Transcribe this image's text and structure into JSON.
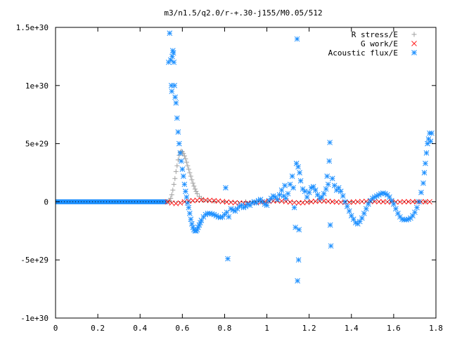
{
  "chart_data": {
    "type": "scatter",
    "title": "m3/n1.5/q2.0/r-+.30-j155/M0.05/512",
    "xlabel": "",
    "ylabel": "",
    "xlim": [
      0,
      1.8
    ],
    "ylim": [
      -1e+30,
      1.5e+30
    ],
    "x_ticks": [
      {
        "value": 0,
        "label": "0"
      },
      {
        "value": 0.2,
        "label": "0.2"
      },
      {
        "value": 0.4,
        "label": "0.4"
      },
      {
        "value": 0.6,
        "label": "0.6"
      },
      {
        "value": 0.8,
        "label": "0.8"
      },
      {
        "value": 1.0,
        "label": "1"
      },
      {
        "value": 1.2,
        "label": "1.2"
      },
      {
        "value": 1.4,
        "label": "1.4"
      },
      {
        "value": 1.6,
        "label": "1.6"
      },
      {
        "value": 1.8,
        "label": "1.8"
      }
    ],
    "y_ticks": [
      {
        "value": 1.5e+30,
        "label": "1.5e+30"
      },
      {
        "value": 1e+30,
        "label": "1e+30"
      },
      {
        "value": 5e+29,
        "label": "5e+29"
      },
      {
        "value": 0,
        "label": "0"
      },
      {
        "value": -5e+29,
        "label": "-5e+29"
      },
      {
        "value": -1e+30,
        "label": "-1e+30"
      }
    ],
    "grid": false,
    "legend_position": "top-right",
    "series": [
      {
        "name": "R stress/E",
        "marker": "plus",
        "color": "#a0a0a0",
        "points": [
          [
            0.53,
            0
          ],
          [
            0.535,
            2e+27
          ],
          [
            0.54,
            1e+28
          ],
          [
            0.545,
            3e+28
          ],
          [
            0.55,
            6e+28
          ],
          [
            0.555,
            1e+29
          ],
          [
            0.56,
            1.5e+29
          ],
          [
            0.565,
            2e+29
          ],
          [
            0.57,
            2.6e+29
          ],
          [
            0.575,
            3.1e+29
          ],
          [
            0.58,
            3.6e+29
          ],
          [
            0.585,
            4e+29
          ],
          [
            0.59,
            4.25e+29
          ],
          [
            0.595,
            4.35e+29
          ],
          [
            0.6,
            4.3e+29
          ],
          [
            0.605,
            4.15e+29
          ],
          [
            0.61,
            3.95e+29
          ],
          [
            0.615,
            3.7e+29
          ],
          [
            0.62,
            3.4e+29
          ],
          [
            0.625,
            3.1e+29
          ],
          [
            0.63,
            2.8e+29
          ],
          [
            0.635,
            2.5e+29
          ],
          [
            0.64,
            2.2e+29
          ],
          [
            0.645,
            1.9e+29
          ],
          [
            0.65,
            1.6e+29
          ],
          [
            0.655,
            1.35e+29
          ],
          [
            0.66,
            1.1e+29
          ],
          [
            0.665,
            9e+28
          ],
          [
            0.67,
            7e+28
          ],
          [
            0.68,
            4.5e+28
          ],
          [
            0.69,
            3e+28
          ],
          [
            0.7,
            2e+28
          ],
          [
            0.72,
            1e+28
          ],
          [
            0.75,
            5e+27
          ],
          [
            0.8,
            2e+27
          ],
          [
            0.9,
            0
          ],
          [
            1.0,
            0
          ],
          [
            1.2,
            0
          ],
          [
            1.4,
            0
          ],
          [
            1.6,
            0
          ],
          [
            1.7,
            0
          ],
          [
            1.75,
            0
          ]
        ]
      },
      {
        "name": "G work/E",
        "marker": "cross",
        "color": "#ff2020",
        "points": [
          [
            0.53,
            -1e+27
          ],
          [
            0.55,
            -1e+28
          ],
          [
            0.57,
            -1.5e+28
          ],
          [
            0.59,
            -1e+28
          ],
          [
            0.61,
            0
          ],
          [
            0.63,
            6e+27
          ],
          [
            0.65,
            1e+28
          ],
          [
            0.67,
            1.3e+28
          ],
          [
            0.69,
            1.5e+28
          ],
          [
            0.71,
            1.4e+28
          ],
          [
            0.73,
            1.2e+28
          ],
          [
            0.75,
            9e+27
          ],
          [
            0.77,
            6e+27
          ],
          [
            0.79,
            2e+27
          ],
          [
            0.81,
            -2e+27
          ],
          [
            0.83,
            -5e+27
          ],
          [
            0.85,
            -8e+27
          ],
          [
            0.87,
            -1e+28
          ],
          [
            0.89,
            -1.2e+28
          ],
          [
            0.91,
            -1.1e+28
          ],
          [
            0.93,
            -9e+27
          ],
          [
            0.95,
            -6e+27
          ],
          [
            0.97,
            -3e+27
          ],
          [
            0.99,
            0
          ],
          [
            1.01,
            4e+27
          ],
          [
            1.03,
            7e+27
          ],
          [
            1.05,
            8e+27
          ],
          [
            1.07,
            6e+27
          ],
          [
            1.09,
            2e+27
          ],
          [
            1.11,
            -3e+27
          ],
          [
            1.13,
            -7e+27
          ],
          [
            1.15,
            -9e+27
          ],
          [
            1.17,
            -8e+27
          ],
          [
            1.19,
            -4e+27
          ],
          [
            1.21,
            0
          ],
          [
            1.23,
            4e+27
          ],
          [
            1.25,
            6e+27
          ],
          [
            1.27,
            6e+27
          ],
          [
            1.29,
            4e+27
          ],
          [
            1.31,
            1e+27
          ],
          [
            1.33,
            -2e+27
          ],
          [
            1.35,
            -4e+27
          ],
          [
            1.37,
            -5e+27
          ],
          [
            1.39,
            -4e+27
          ],
          [
            1.41,
            -2e+27
          ],
          [
            1.43,
            0
          ],
          [
            1.45,
            2e+27
          ],
          [
            1.47,
            3e+27
          ],
          [
            1.49,
            3e+27
          ],
          [
            1.51,
            2e+27
          ],
          [
            1.53,
            1e+27
          ],
          [
            1.55,
            0
          ],
          [
            1.57,
            -1e+27
          ],
          [
            1.59,
            -2e+27
          ],
          [
            1.61,
            -2e+27
          ],
          [
            1.63,
            -1e+27
          ],
          [
            1.65,
            0
          ],
          [
            1.67,
            1e+27
          ],
          [
            1.69,
            1e+27
          ],
          [
            1.71,
            0
          ],
          [
            1.73,
            0
          ],
          [
            1.75,
            0
          ],
          [
            1.77,
            0
          ]
        ]
      },
      {
        "name": "Acoustic flux/E",
        "marker": "star",
        "color": "#1e90ff",
        "points": [
          [
            0.535,
            1.2e+30
          ],
          [
            0.54,
            1.45e+30
          ],
          [
            0.545,
            1.22e+30
          ],
          [
            0.548,
            1e+30
          ],
          [
            0.55,
            9.5e+29
          ],
          [
            0.552,
            1.25e+30
          ],
          [
            0.555,
            1.3e+30
          ],
          [
            0.558,
            1.28e+30
          ],
          [
            0.56,
            1.2e+30
          ],
          [
            0.563,
            1e+30
          ],
          [
            0.566,
            9e+29
          ],
          [
            0.57,
            8.5e+29
          ],
          [
            0.575,
            7.2e+29
          ],
          [
            0.58,
            6e+29
          ],
          [
            0.585,
            5e+29
          ],
          [
            0.59,
            4.2e+29
          ],
          [
            0.595,
            3.5e+29
          ],
          [
            0.6,
            2.8e+29
          ],
          [
            0.605,
            2.2e+29
          ],
          [
            0.61,
            1.5e+29
          ],
          [
            0.615,
            9e+28
          ],
          [
            0.62,
            4e+28
          ],
          [
            0.625,
            -1e+28
          ],
          [
            0.63,
            -5e+28
          ],
          [
            0.635,
            -1e+29
          ],
          [
            0.64,
            -1.5e+29
          ],
          [
            0.645,
            -1.9e+29
          ],
          [
            0.65,
            -2.2e+29
          ],
          [
            0.655,
            -2.4e+29
          ],
          [
            0.66,
            -2.5e+29
          ],
          [
            0.665,
            -2.5e+29
          ],
          [
            0.67,
            -2.4e+29
          ],
          [
            0.675,
            -2.2e+29
          ],
          [
            0.68,
            -2e+29
          ],
          [
            0.685,
            -1.8e+29
          ],
          [
            0.69,
            -1.6e+29
          ],
          [
            0.7,
            -1.3e+29
          ],
          [
            0.71,
            -1.1e+29
          ],
          [
            0.72,
            -1e+29
          ],
          [
            0.73,
            -1e+29
          ],
          [
            0.74,
            -1.05e+29
          ],
          [
            0.75,
            -1.1e+29
          ],
          [
            0.76,
            -1.2e+29
          ],
          [
            0.77,
            -1.3e+29
          ],
          [
            0.78,
            -1.35e+29
          ],
          [
            0.79,
            -1.3e+29
          ],
          [
            0.8,
            -1.1e+29
          ],
          [
            0.805,
            1.2e+29
          ],
          [
            0.81,
            -9e+28
          ],
          [
            0.815,
            -4.9e+29
          ],
          [
            0.82,
            -1.3e+29
          ],
          [
            0.83,
            -6e+28
          ],
          [
            0.84,
            -7e+28
          ],
          [
            0.85,
            -8e+28
          ],
          [
            0.86,
            -6e+28
          ],
          [
            0.87,
            -4e+28
          ],
          [
            0.88,
            -3e+28
          ],
          [
            0.89,
            -5e+28
          ],
          [
            0.9,
            -4e+28
          ],
          [
            0.91,
            -2e+28
          ],
          [
            0.92,
            -3e+28
          ],
          [
            0.93,
            -1e+28
          ],
          [
            0.94,
            0
          ],
          [
            0.95,
            -1e+28
          ],
          [
            0.96,
            1e+28
          ],
          [
            0.97,
            2e+28
          ],
          [
            0.98,
            0
          ],
          [
            0.99,
            -2e+28
          ],
          [
            1.0,
            -3e+28
          ],
          [
            1.01,
            1e+28
          ],
          [
            1.02,
            3e+28
          ],
          [
            1.03,
            5e+28
          ],
          [
            1.04,
            4e+28
          ],
          [
            1.05,
            2e+28
          ],
          [
            1.06,
            6e+28
          ],
          [
            1.07,
            1e+29
          ],
          [
            1.08,
            5e+28
          ],
          [
            1.085,
            1.4e+29
          ],
          [
            1.09,
            3e+28
          ],
          [
            1.1,
            7e+28
          ],
          [
            1.11,
            1.5e+29
          ],
          [
            1.12,
            2.2e+29
          ],
          [
            1.125,
            1.2e+29
          ],
          [
            1.13,
            -5e+28
          ],
          [
            1.135,
            -2.2e+29
          ],
          [
            1.14,
            3.3e+29
          ],
          [
            1.143,
            1.4e+30
          ],
          [
            1.145,
            -6.8e+29
          ],
          [
            1.148,
            3e+29
          ],
          [
            1.15,
            -5e+29
          ],
          [
            1.152,
            -2.4e+29
          ],
          [
            1.155,
            2.5e+29
          ],
          [
            1.16,
            1.8e+29
          ],
          [
            1.17,
            1.1e+29
          ],
          [
            1.18,
            9e+28
          ],
          [
            1.19,
            4e+28
          ],
          [
            1.2,
            8e+28
          ],
          [
            1.21,
            1.2e+29
          ],
          [
            1.22,
            1.3e+29
          ],
          [
            1.23,
            1e+29
          ],
          [
            1.24,
            6e+28
          ],
          [
            1.25,
            3e+28
          ],
          [
            1.26,
            4e+28
          ],
          [
            1.27,
            7e+28
          ],
          [
            1.28,
            1.1e+29
          ],
          [
            1.285,
            2.2e+29
          ],
          [
            1.29,
            1.5e+29
          ],
          [
            1.295,
            3.5e+29
          ],
          [
            1.298,
            5.1e+29
          ],
          [
            1.3,
            -2e+29
          ],
          [
            1.303,
            -3.8e+29
          ],
          [
            1.31,
            2e+29
          ],
          [
            1.32,
            1.4e+29
          ],
          [
            1.33,
            1e+29
          ],
          [
            1.34,
            1.2e+29
          ],
          [
            1.35,
            9e+28
          ],
          [
            1.36,
            5e+28
          ],
          [
            1.37,
            0
          ],
          [
            1.38,
            -4e+28
          ],
          [
            1.39,
            -8e+28
          ],
          [
            1.4,
            -1.2e+29
          ],
          [
            1.41,
            -1.5e+29
          ],
          [
            1.42,
            -1.8e+29
          ],
          [
            1.43,
            -1.9e+29
          ],
          [
            1.44,
            -1.7e+29
          ],
          [
            1.45,
            -1.4e+29
          ],
          [
            1.46,
            -1e+29
          ],
          [
            1.47,
            -6e+28
          ],
          [
            1.48,
            -2e+28
          ],
          [
            1.49,
            1e+28
          ],
          [
            1.5,
            3e+28
          ],
          [
            1.51,
            4e+28
          ],
          [
            1.52,
            5e+28
          ],
          [
            1.53,
            6e+28
          ],
          [
            1.54,
            7e+28
          ],
          [
            1.55,
            7.5e+28
          ],
          [
            1.56,
            7e+28
          ],
          [
            1.57,
            6e+28
          ],
          [
            1.58,
            4e+28
          ],
          [
            1.59,
            1e+28
          ],
          [
            1.6,
            -2e+28
          ],
          [
            1.61,
            -6e+28
          ],
          [
            1.62,
            -1e+29
          ],
          [
            1.63,
            -1.3e+29
          ],
          [
            1.64,
            -1.5e+29
          ],
          [
            1.65,
            -1.55e+29
          ],
          [
            1.66,
            -1.55e+29
          ],
          [
            1.67,
            -1.5e+29
          ],
          [
            1.68,
            -1.4e+29
          ],
          [
            1.69,
            -1.2e+29
          ],
          [
            1.7,
            -9e+28
          ],
          [
            1.71,
            -5e+28
          ],
          [
            1.72,
            0
          ],
          [
            1.73,
            8e+28
          ],
          [
            1.74,
            1.6e+29
          ],
          [
            1.745,
            2.5e+29
          ],
          [
            1.75,
            3.3e+29
          ],
          [
            1.755,
            4.2e+29
          ],
          [
            1.76,
            5e+29
          ],
          [
            1.765,
            5.4e+29
          ],
          [
            1.77,
            5.9e+29
          ],
          [
            1.775,
            5.2e+29
          ],
          [
            1.78,
            5.9e+29
          ]
        ]
      }
    ]
  }
}
